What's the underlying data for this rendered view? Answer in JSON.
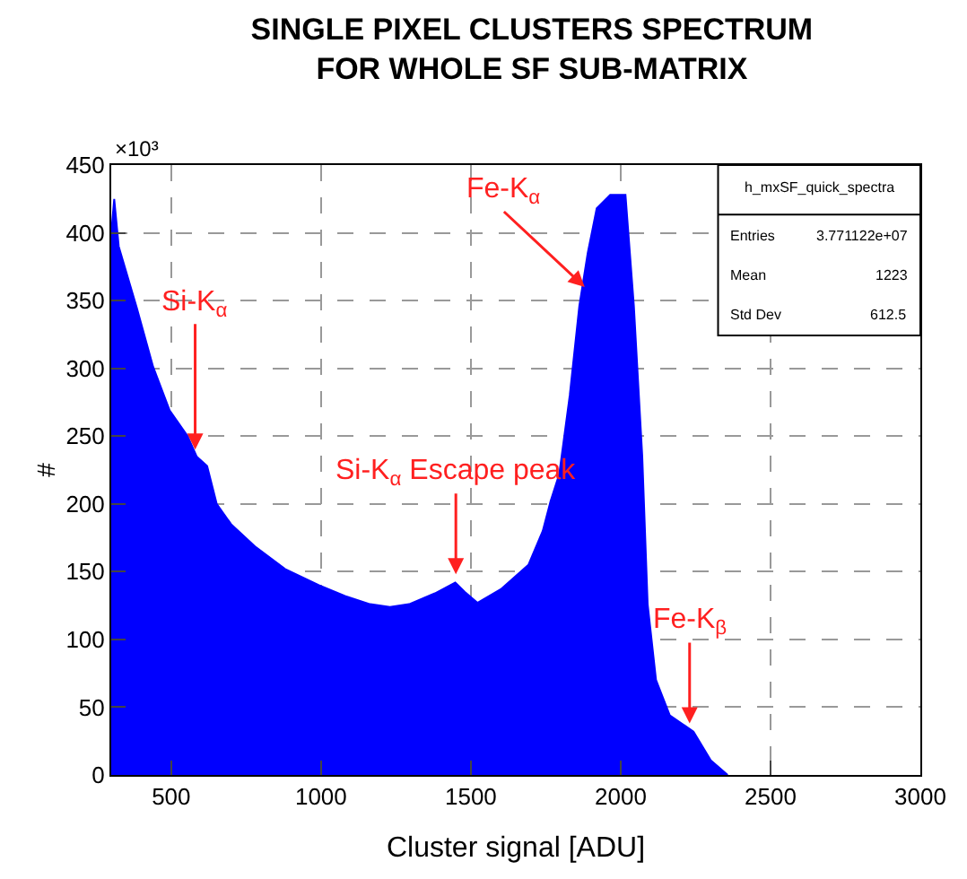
{
  "chart_data": {
    "type": "area",
    "title": "SINGLE PIXEL CLUSTERS SPECTRUM\nFOR WHOLE SF SUB-MATRIX",
    "xlabel": "Cluster signal [ADU]",
    "ylabel": "#",
    "color": "#0000ff",
    "x": [
      300,
      310,
      325,
      385,
      440,
      495,
      555,
      585,
      620,
      652,
      700,
      783,
      880,
      993,
      1080,
      1164,
      1230,
      1294,
      1380,
      1448,
      1480,
      1522,
      1600,
      1692,
      1740,
      1766,
      1795,
      1830,
      1862,
      1890,
      1920,
      1965,
      2016,
      2044,
      2072,
      2090,
      2118,
      2164,
      2243,
      2300,
      2357
    ],
    "values": [
      400,
      425,
      390,
      345,
      301,
      269,
      250,
      235,
      228,
      200,
      185,
      168,
      152,
      140,
      132,
      126,
      124,
      126,
      134,
      142,
      135,
      127,
      137,
      155,
      180,
      202,
      222,
      280,
      346,
      385,
      418,
      428,
      428,
      346,
      235,
      126,
      70,
      44,
      32,
      11,
      0
    ],
    "xlim": [
      300,
      3000
    ],
    "xticks": [
      500,
      1000,
      1500,
      2000,
      2500,
      3000
    ],
    "ylim": [
      0,
      450
    ],
    "yticks": [
      0,
      50,
      100,
      150,
      200,
      250,
      300,
      350,
      400,
      450
    ],
    "grid": true,
    "line_style": "dashed",
    "annotations": [
      "×10³",
      "h_mxSF_quick_spectra",
      "Entries",
      "3.771122e+07",
      "Mean",
      "1223",
      "Std Dev",
      "612.5",
      {
        "text": "Si-K$_{α}$",
        "x": 580,
        "y": 240
      },
      {
        "text": "Si-K$_{α}$ Escape peak",
        "x": 1450,
        "y": 148
      },
      {
        "text": "Fe-K$_{α}$",
        "x": 1880,
        "y": 360
      },
      {
        "text": "Fe-K$_{β}$",
        "x": 2230,
        "y": 38
      }
    ]
  }
}
